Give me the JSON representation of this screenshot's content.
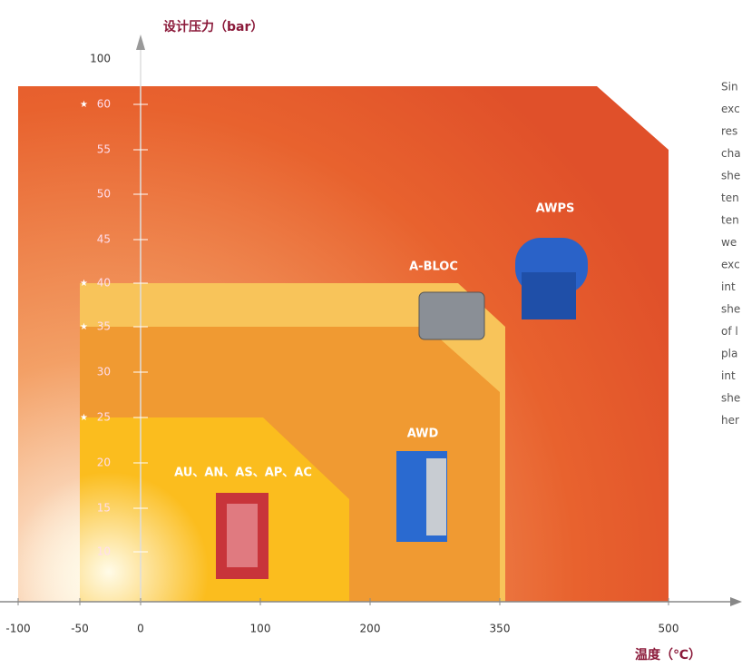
{
  "y_axis": {
    "title": "设计压力（bar）",
    "ticks": [
      {
        "label": "100"
      },
      {
        "label": "60",
        "starred": true
      },
      {
        "label": "55"
      },
      {
        "label": "50"
      },
      {
        "label": "45"
      },
      {
        "label": "40",
        "starred": true
      },
      {
        "label": "35",
        "starred": true
      },
      {
        "label": "30"
      },
      {
        "label": "25",
        "starred": true
      },
      {
        "label": "20"
      },
      {
        "label": "15"
      },
      {
        "label": "10"
      }
    ]
  },
  "x_axis": {
    "title": "温度（℃）",
    "ticks": [
      "-100",
      "-50",
      "0",
      "100",
      "200",
      "350",
      "500"
    ]
  },
  "products": [
    {
      "label": "AWPS"
    },
    {
      "label": "A-BLOC"
    },
    {
      "label": "AWD"
    },
    {
      "label": "AU、AN、AS、AP、AC"
    }
  ],
  "side_text": [
    "Sin",
    "exc",
    "res",
    "cha",
    "she",
    "ten",
    "ten",
    "we",
    "exc",
    "int",
    "she",
    "of l",
    "pla",
    "int",
    "she",
    "her"
  ]
}
